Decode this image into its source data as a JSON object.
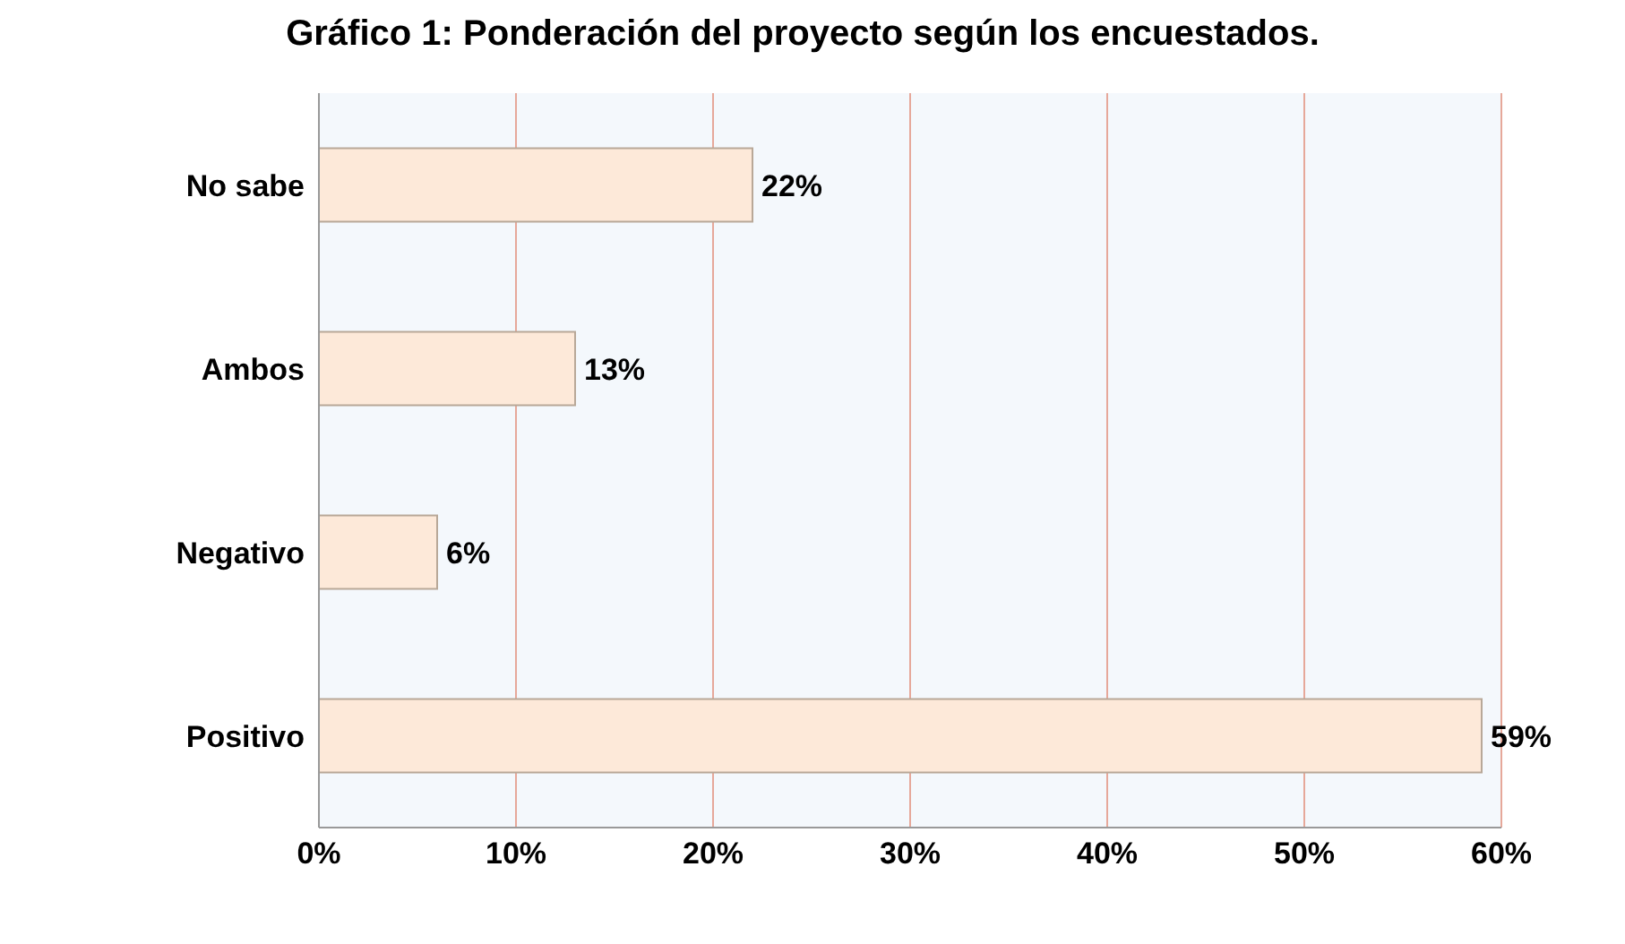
{
  "chart_data": {
    "type": "bar",
    "orientation": "horizontal",
    "title": "Gráfico 1: Ponderación del proyecto según los encuestados.",
    "categories": [
      "No sabe",
      "Ambos",
      "Negativo",
      "Positivo"
    ],
    "values": [
      22,
      13,
      6,
      59
    ],
    "color": "#fde9d9",
    "value_labels": [
      "22%",
      "13%",
      "6%",
      "59%"
    ],
    "xlim": [
      0,
      60
    ],
    "xticks": [
      {
        "value": 0,
        "label": "0%"
      },
      {
        "value": 10,
        "label": "10%"
      },
      {
        "value": 20,
        "label": "20%"
      },
      {
        "value": 30,
        "label": "30%"
      },
      {
        "value": 40,
        "label": "40%"
      },
      {
        "value": 50,
        "label": "50%"
      },
      {
        "value": 60,
        "label": "60%"
      }
    ],
    "grid": "x"
  }
}
